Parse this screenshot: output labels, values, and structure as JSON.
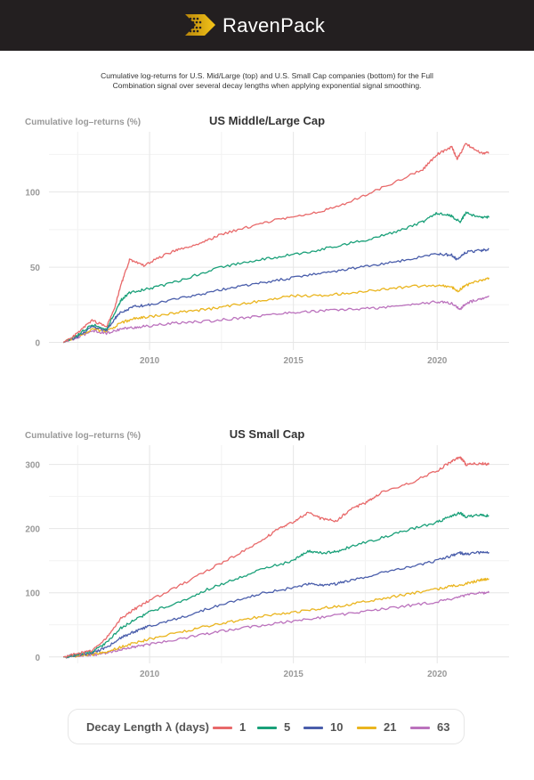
{
  "header": {
    "brand": "RavenPack"
  },
  "caption": {
    "line1": "Cumulative log-returns for U.S. Mid/Large (top) and U.S. Small Cap companies (bottom) for the Full",
    "line2": "Combination signal over several decay lengths when applying exponential signal smoothing."
  },
  "colors": {
    "s1": "#e8696a",
    "s5": "#1aa079",
    "s10": "#4a5eab",
    "s21": "#eab51f",
    "s63": "#bb72bd"
  },
  "legend": {
    "title": "Decay Length λ (days)",
    "items": [
      {
        "label": "1",
        "color": "#e8696a"
      },
      {
        "label": "5",
        "color": "#1aa079"
      },
      {
        "label": "10",
        "color": "#4a5eab"
      },
      {
        "label": "21",
        "color": "#eab51f"
      },
      {
        "label": "63",
        "color": "#bb72bd"
      }
    ]
  },
  "chart_data": [
    {
      "type": "line",
      "title": "US Middle/Large Cap",
      "ylabel": "Cumulative log–returns (%)",
      "xlabel": "",
      "xlim": [
        2006.5,
        2022.5
      ],
      "ylim": [
        -5,
        140
      ],
      "xticks": [
        2010,
        2015,
        2020
      ],
      "xtick_labels": [
        "2010",
        "2015",
        "2020"
      ],
      "yticks": [
        0,
        50,
        100
      ],
      "ytick_labels": [
        "0",
        "50",
        "100"
      ],
      "grid": true,
      "series": [
        {
          "name": "1",
          "points": [
            [
              2007.0,
              0
            ],
            [
              2007.5,
              6
            ],
            [
              2008.0,
              15
            ],
            [
              2008.5,
              10
            ],
            [
              2008.8,
              24
            ],
            [
              2009.0,
              38
            ],
            [
              2009.3,
              55
            ],
            [
              2009.8,
              51
            ],
            [
              2010.5,
              58
            ],
            [
              2011.0,
              62
            ],
            [
              2011.8,
              66
            ],
            [
              2012.5,
              72
            ],
            [
              2013.5,
              77
            ],
            [
              2014.5,
              82
            ],
            [
              2015.5,
              85
            ],
            [
              2016.5,
              90
            ],
            [
              2017.5,
              98
            ],
            [
              2018.5,
              106
            ],
            [
              2019.5,
              115
            ],
            [
              2020.0,
              125
            ],
            [
              2020.5,
              130
            ],
            [
              2020.7,
              122
            ],
            [
              2021.0,
              132
            ],
            [
              2021.5,
              126
            ],
            [
              2021.8,
              126
            ]
          ]
        },
        {
          "name": "5",
          "points": [
            [
              2007.0,
              0
            ],
            [
              2007.5,
              5
            ],
            [
              2008.0,
              12
            ],
            [
              2008.5,
              9
            ],
            [
              2008.8,
              20
            ],
            [
              2009.0,
              28
            ],
            [
              2009.3,
              33
            ],
            [
              2009.8,
              35
            ],
            [
              2010.5,
              38
            ],
            [
              2011.5,
              44
            ],
            [
              2012.5,
              50
            ],
            [
              2013.5,
              54
            ],
            [
              2014.5,
              57
            ],
            [
              2015.5,
              60
            ],
            [
              2016.5,
              64
            ],
            [
              2017.5,
              68
            ],
            [
              2018.5,
              73
            ],
            [
              2019.5,
              80
            ],
            [
              2020.0,
              86
            ],
            [
              2020.5,
              84
            ],
            [
              2020.8,
              80
            ],
            [
              2021.0,
              86
            ],
            [
              2021.5,
              83
            ],
            [
              2021.8,
              83
            ]
          ]
        },
        {
          "name": "10",
          "points": [
            [
              2007.0,
              0
            ],
            [
              2007.5,
              4
            ],
            [
              2008.0,
              10
            ],
            [
              2008.5,
              8
            ],
            [
              2008.8,
              16
            ],
            [
              2009.0,
              20
            ],
            [
              2009.5,
              24
            ],
            [
              2010.0,
              25
            ],
            [
              2011.0,
              29
            ],
            [
              2012.0,
              33
            ],
            [
              2013.0,
              37
            ],
            [
              2014.0,
              40
            ],
            [
              2015.0,
              43
            ],
            [
              2016.0,
              46
            ],
            [
              2017.0,
              49
            ],
            [
              2018.0,
              52
            ],
            [
              2019.0,
              55
            ],
            [
              2020.0,
              59
            ],
            [
              2020.5,
              58
            ],
            [
              2020.7,
              55
            ],
            [
              2021.0,
              60
            ],
            [
              2021.5,
              61
            ],
            [
              2021.8,
              62
            ]
          ]
        },
        {
          "name": "21",
          "points": [
            [
              2007.0,
              0
            ],
            [
              2007.5,
              4
            ],
            [
              2008.0,
              9
            ],
            [
              2008.5,
              7
            ],
            [
              2009.0,
              13
            ],
            [
              2009.5,
              16
            ],
            [
              2010.0,
              17
            ],
            [
              2011.0,
              20
            ],
            [
              2012.0,
              22
            ],
            [
              2013.0,
              25
            ],
            [
              2014.0,
              28
            ],
            [
              2015.0,
              31
            ],
            [
              2016.0,
              31
            ],
            [
              2017.0,
              33
            ],
            [
              2018.0,
              35
            ],
            [
              2019.0,
              37
            ],
            [
              2020.0,
              38
            ],
            [
              2020.5,
              37
            ],
            [
              2020.7,
              34
            ],
            [
              2021.0,
              38
            ],
            [
              2021.5,
              41
            ],
            [
              2021.8,
              43
            ]
          ]
        },
        {
          "name": "63",
          "points": [
            [
              2007.0,
              0
            ],
            [
              2007.5,
              3
            ],
            [
              2008.0,
              8
            ],
            [
              2008.5,
              6
            ],
            [
              2009.0,
              9
            ],
            [
              2009.5,
              10
            ],
            [
              2010.0,
              11
            ],
            [
              2011.0,
              13
            ],
            [
              2012.0,
              14
            ],
            [
              2013.0,
              16
            ],
            [
              2014.0,
              18
            ],
            [
              2015.0,
              20
            ],
            [
              2016.0,
              21
            ],
            [
              2017.0,
              22
            ],
            [
              2018.0,
              23
            ],
            [
              2019.0,
              25
            ],
            [
              2020.0,
              27
            ],
            [
              2020.5,
              26
            ],
            [
              2020.8,
              22
            ],
            [
              2021.0,
              26
            ],
            [
              2021.5,
              29
            ],
            [
              2021.8,
              31
            ]
          ]
        }
      ]
    },
    {
      "type": "line",
      "title": "US Small Cap",
      "ylabel": "Cumulative log–returns (%)",
      "xlabel": "",
      "xlim": [
        2006.5,
        2022.5
      ],
      "ylim": [
        -10,
        330
      ],
      "xticks": [
        2010,
        2015,
        2020
      ],
      "xtick_labels": [
        "2010",
        "2015",
        "2020"
      ],
      "yticks": [
        0,
        100,
        200,
        300
      ],
      "ytick_labels": [
        "0",
        "100",
        "200",
        "300"
      ],
      "grid": true,
      "series": [
        {
          "name": "1",
          "points": [
            [
              2007.0,
              0
            ],
            [
              2007.5,
              5
            ],
            [
              2008.0,
              10
            ],
            [
              2008.5,
              30
            ],
            [
              2009.0,
              60
            ],
            [
              2009.5,
              75
            ],
            [
              2010.0,
              88
            ],
            [
              2011.0,
              110
            ],
            [
              2012.0,
              135
            ],
            [
              2013.0,
              158
            ],
            [
              2014.0,
              185
            ],
            [
              2014.5,
              200
            ],
            [
              2015.0,
              210
            ],
            [
              2015.5,
              225
            ],
            [
              2016.0,
              215
            ],
            [
              2016.5,
              212
            ],
            [
              2017.0,
              230
            ],
            [
              2017.5,
              240
            ],
            [
              2018.0,
              255
            ],
            [
              2019.0,
              270
            ],
            [
              2020.0,
              290
            ],
            [
              2020.5,
              305
            ],
            [
              2020.8,
              312
            ],
            [
              2021.0,
              300
            ],
            [
              2021.5,
              302
            ],
            [
              2021.8,
              300
            ]
          ]
        },
        {
          "name": "5",
          "points": [
            [
              2007.0,
              0
            ],
            [
              2007.5,
              4
            ],
            [
              2008.0,
              8
            ],
            [
              2008.5,
              22
            ],
            [
              2009.0,
              45
            ],
            [
              2009.5,
              58
            ],
            [
              2010.0,
              70
            ],
            [
              2011.0,
              85
            ],
            [
              2012.0,
              105
            ],
            [
              2013.0,
              122
            ],
            [
              2014.0,
              138
            ],
            [
              2015.0,
              150
            ],
            [
              2015.5,
              165
            ],
            [
              2016.0,
              162
            ],
            [
              2016.5,
              164
            ],
            [
              2017.0,
              172
            ],
            [
              2018.0,
              185
            ],
            [
              2019.0,
              198
            ],
            [
              2020.0,
              210
            ],
            [
              2020.5,
              220
            ],
            [
              2020.8,
              225
            ],
            [
              2021.0,
              218
            ],
            [
              2021.5,
              222
            ],
            [
              2021.8,
              220
            ]
          ]
        },
        {
          "name": "10",
          "points": [
            [
              2007.0,
              0
            ],
            [
              2007.5,
              3
            ],
            [
              2008.0,
              6
            ],
            [
              2008.5,
              15
            ],
            [
              2009.0,
              30
            ],
            [
              2009.5,
              40
            ],
            [
              2010.0,
              48
            ],
            [
              2011.0,
              60
            ],
            [
              2012.0,
              75
            ],
            [
              2013.0,
              88
            ],
            [
              2014.0,
              100
            ],
            [
              2015.0,
              108
            ],
            [
              2015.5,
              114
            ],
            [
              2016.0,
              112
            ],
            [
              2016.5,
              114
            ],
            [
              2017.0,
              120
            ],
            [
              2018.0,
              130
            ],
            [
              2019.0,
              140
            ],
            [
              2020.0,
              150
            ],
            [
              2020.5,
              158
            ],
            [
              2020.8,
              162
            ],
            [
              2021.0,
              160
            ],
            [
              2021.5,
              163
            ],
            [
              2021.8,
              163
            ]
          ]
        },
        {
          "name": "21",
          "points": [
            [
              2007.0,
              0
            ],
            [
              2007.5,
              2
            ],
            [
              2008.0,
              4
            ],
            [
              2008.5,
              8
            ],
            [
              2009.0,
              15
            ],
            [
              2009.5,
              22
            ],
            [
              2010.0,
              28
            ],
            [
              2011.0,
              38
            ],
            [
              2012.0,
              48
            ],
            [
              2013.0,
              56
            ],
            [
              2014.0,
              64
            ],
            [
              2015.0,
              70
            ],
            [
              2016.0,
              76
            ],
            [
              2017.0,
              82
            ],
            [
              2018.0,
              90
            ],
            [
              2019.0,
              98
            ],
            [
              2020.0,
              106
            ],
            [
              2020.5,
              110
            ],
            [
              2021.0,
              114
            ],
            [
              2021.5,
              120
            ],
            [
              2021.8,
              122
            ]
          ]
        },
        {
          "name": "63",
          "points": [
            [
              2007.0,
              0
            ],
            [
              2007.5,
              2
            ],
            [
              2008.0,
              3
            ],
            [
              2008.5,
              6
            ],
            [
              2009.0,
              12
            ],
            [
              2009.5,
              16
            ],
            [
              2010.0,
              20
            ],
            [
              2011.0,
              28
            ],
            [
              2012.0,
              36
            ],
            [
              2013.0,
              44
            ],
            [
              2014.0,
              50
            ],
            [
              2015.0,
              56
            ],
            [
              2016.0,
              62
            ],
            [
              2017.0,
              68
            ],
            [
              2018.0,
              74
            ],
            [
              2019.0,
              80
            ],
            [
              2020.0,
              86
            ],
            [
              2020.5,
              90
            ],
            [
              2021.0,
              96
            ],
            [
              2021.5,
              100
            ],
            [
              2021.8,
              100
            ]
          ]
        }
      ]
    }
  ]
}
